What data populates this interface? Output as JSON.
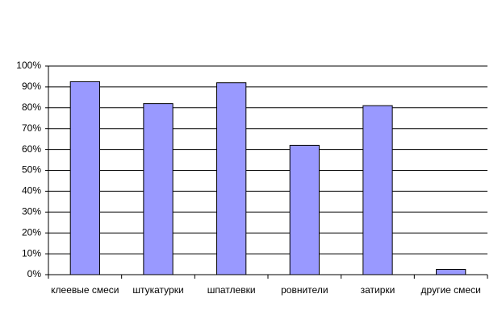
{
  "chart_data": {
    "type": "bar",
    "categories": [
      "клеевые смеси",
      "штукатурки",
      "шпатлевки",
      "ровнители",
      "затирки",
      "другие смеси"
    ],
    "values": [
      92.5,
      82,
      92,
      62,
      81,
      2.5
    ],
    "color": "#9999ff",
    "ylim": [
      0,
      100
    ],
    "yticks": [
      {
        "value": 0,
        "label": "0%"
      },
      {
        "value": 10,
        "label": "10%"
      },
      {
        "value": 20,
        "label": "20%"
      },
      {
        "value": 30,
        "label": "30%"
      },
      {
        "value": 40,
        "label": "40%"
      },
      {
        "value": 50,
        "label": "50%"
      },
      {
        "value": 60,
        "label": "60%"
      },
      {
        "value": 70,
        "label": "70%"
      },
      {
        "value": 80,
        "label": "80%"
      },
      {
        "value": 90,
        "label": "90%"
      },
      {
        "value": 100,
        "label": "100%"
      }
    ],
    "grid": true
  }
}
